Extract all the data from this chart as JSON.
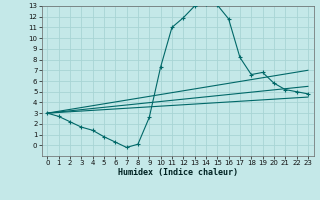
{
  "xlabel": "Humidex (Indice chaleur)",
  "ylabel": "",
  "background_color": "#c4e8e8",
  "grid_color": "#a8d4d4",
  "line_color": "#006868",
  "xlim": [
    -0.5,
    23.5
  ],
  "ylim": [
    -1,
    13
  ],
  "xticks": [
    0,
    1,
    2,
    3,
    4,
    5,
    6,
    7,
    8,
    9,
    10,
    11,
    12,
    13,
    14,
    15,
    16,
    17,
    18,
    19,
    20,
    21,
    22,
    23
  ],
  "yticks": [
    0,
    1,
    2,
    3,
    4,
    5,
    6,
    7,
    8,
    9,
    10,
    11,
    12,
    13
  ],
  "curve1_x": [
    0,
    1,
    2,
    3,
    4,
    5,
    6,
    7,
    8,
    9,
    10,
    11,
    12,
    13,
    14,
    15,
    16,
    17,
    18,
    19,
    20,
    21,
    22,
    23
  ],
  "curve1_y": [
    3.0,
    2.7,
    2.2,
    1.7,
    1.4,
    0.8,
    0.3,
    -0.2,
    0.1,
    2.6,
    7.3,
    11.0,
    11.9,
    13.0,
    13.2,
    13.1,
    11.8,
    8.2,
    6.6,
    6.8,
    5.8,
    5.2,
    5.0,
    4.8
  ],
  "line1_x": [
    0,
    23
  ],
  "line1_y": [
    3.0,
    7.0
  ],
  "line2_x": [
    0,
    23
  ],
  "line2_y": [
    3.0,
    5.5
  ],
  "line3_x": [
    0,
    23
  ],
  "line3_y": [
    3.0,
    4.5
  ]
}
